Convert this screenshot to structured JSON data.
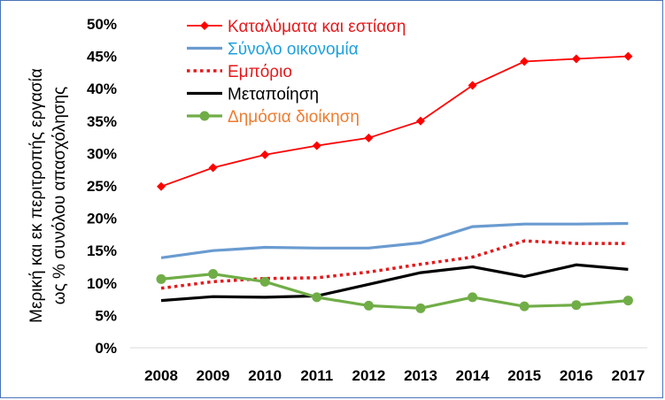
{
  "chart_data": {
    "type": "line",
    "title": "",
    "ylabel_line1": "Μερική και εκ περιτροπής εργασία",
    "ylabel_line2": "ως % συνόλου απασχόλησης",
    "xlabel": "",
    "x": [
      "2008",
      "2009",
      "2010",
      "2011",
      "2012",
      "2013",
      "2014",
      "2015",
      "2016",
      "2017"
    ],
    "y_ticks": [
      "0%",
      "5%",
      "10%",
      "15%",
      "20%",
      "25%",
      "30%",
      "35%",
      "40%",
      "45%",
      "50%"
    ],
    "ylim": [
      0,
      50
    ],
    "grid": false,
    "legend_position": "top-center",
    "series": [
      {
        "name": "Καταλύματα και εστίαση",
        "values": [
          24.9,
          27.8,
          29.8,
          31.2,
          32.4,
          35.0,
          40.5,
          44.2,
          44.6,
          45.0
        ],
        "color": "#ff0000",
        "label_color": "#e31a1c",
        "style": "solid",
        "marker": "diamond"
      },
      {
        "name": "Σύνολο οικονομία",
        "values": [
          13.9,
          15.0,
          15.5,
          15.4,
          15.4,
          16.2,
          18.7,
          19.1,
          19.1,
          19.2
        ],
        "color": "#6a9bd0",
        "label_color": "#1ea0dc",
        "style": "solid",
        "marker": "none"
      },
      {
        "name": "Εμπόριο",
        "values": [
          9.2,
          10.2,
          10.7,
          10.8,
          11.7,
          12.9,
          14.0,
          16.5,
          16.1,
          16.1
        ],
        "color": "#e31a1c",
        "label_color": "#e31a1c",
        "style": "dotted",
        "marker": "none"
      },
      {
        "name": "Μεταποίηση",
        "values": [
          7.3,
          7.9,
          7.8,
          8.0,
          9.8,
          11.6,
          12.5,
          11.0,
          12.8,
          12.1
        ],
        "color": "#000000",
        "label_color": "#000000",
        "style": "solid",
        "marker": "none"
      },
      {
        "name": "Δημόσια διοίκηση",
        "values": [
          10.6,
          11.4,
          10.2,
          7.8,
          6.5,
          6.1,
          7.8,
          6.4,
          6.6,
          7.3
        ],
        "color": "#70ad47",
        "label_color": "#ed7d31",
        "style": "solid",
        "marker": "circle"
      }
    ]
  },
  "colors": {
    "border": "#4a73b8",
    "axis": "#d9d9d9"
  }
}
